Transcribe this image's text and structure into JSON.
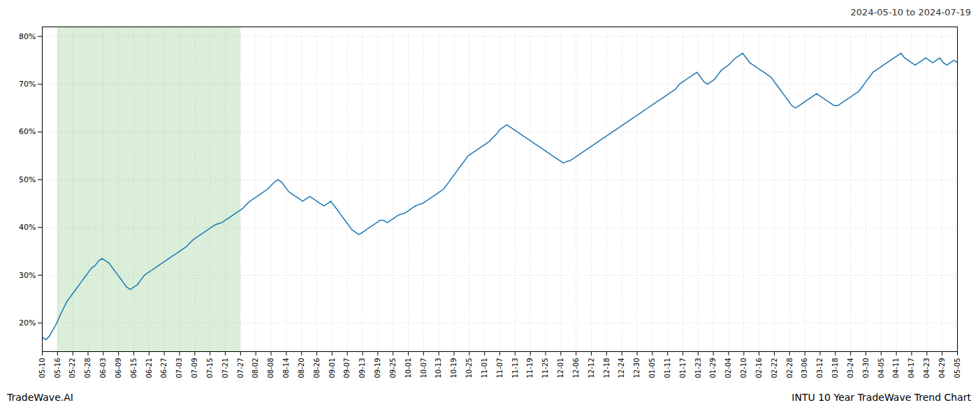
{
  "chart_data": {
    "type": "line",
    "title": "INTU 10 Year TradeWave Trend Chart",
    "subtitle": "2024-05-10 to 2024-07-19",
    "caption": "TradeWave.AI",
    "color": "#1f77b4",
    "grid": true,
    "highlight": {
      "from": 1,
      "to": 13,
      "color": "#daeeda"
    },
    "xlim": [
      0,
      60
    ],
    "xticks": [
      {
        "value": 0,
        "label": "05-10"
      },
      {
        "value": 1,
        "label": "05-16"
      },
      {
        "value": 2,
        "label": "05-22"
      },
      {
        "value": 3,
        "label": "05-28"
      },
      {
        "value": 4,
        "label": "06-03"
      },
      {
        "value": 5,
        "label": "06-09"
      },
      {
        "value": 6,
        "label": "06-15"
      },
      {
        "value": 7,
        "label": "06-21"
      },
      {
        "value": 8,
        "label": "06-27"
      },
      {
        "value": 9,
        "label": "07-03"
      },
      {
        "value": 10,
        "label": "07-09"
      },
      {
        "value": 11,
        "label": "07-15"
      },
      {
        "value": 12,
        "label": "07-21"
      },
      {
        "value": 13,
        "label": "07-27"
      },
      {
        "value": 14,
        "label": "08-02"
      },
      {
        "value": 15,
        "label": "08-08"
      },
      {
        "value": 16,
        "label": "08-14"
      },
      {
        "value": 17,
        "label": "08-20"
      },
      {
        "value": 18,
        "label": "08-26"
      },
      {
        "value": 19,
        "label": "09-01"
      },
      {
        "value": 20,
        "label": "09-07"
      },
      {
        "value": 21,
        "label": "09-13"
      },
      {
        "value": 22,
        "label": "09-19"
      },
      {
        "value": 23,
        "label": "09-25"
      },
      {
        "value": 24,
        "label": "10-01"
      },
      {
        "value": 25,
        "label": "10-07"
      },
      {
        "value": 26,
        "label": "10-13"
      },
      {
        "value": 27,
        "label": "10-19"
      },
      {
        "value": 28,
        "label": "10-25"
      },
      {
        "value": 29,
        "label": "11-01"
      },
      {
        "value": 30,
        "label": "11-07"
      },
      {
        "value": 31,
        "label": "11-13"
      },
      {
        "value": 32,
        "label": "11-19"
      },
      {
        "value": 33,
        "label": "11-25"
      },
      {
        "value": 34,
        "label": "12-01"
      },
      {
        "value": 35,
        "label": "12-06"
      },
      {
        "value": 36,
        "label": "12-12"
      },
      {
        "value": 37,
        "label": "12-18"
      },
      {
        "value": 38,
        "label": "12-24"
      },
      {
        "value": 39,
        "label": "12-30"
      },
      {
        "value": 40,
        "label": "01-05"
      },
      {
        "value": 41,
        "label": "01-11"
      },
      {
        "value": 42,
        "label": "01-17"
      },
      {
        "value": 43,
        "label": "01-23"
      },
      {
        "value": 44,
        "label": "01-29"
      },
      {
        "value": 45,
        "label": "02-04"
      },
      {
        "value": 46,
        "label": "02-10"
      },
      {
        "value": 47,
        "label": "02-16"
      },
      {
        "value": 48,
        "label": "02-22"
      },
      {
        "value": 49,
        "label": "02-28"
      },
      {
        "value": 50,
        "label": "03-06"
      },
      {
        "value": 51,
        "label": "03-12"
      },
      {
        "value": 52,
        "label": "03-18"
      },
      {
        "value": 53,
        "label": "03-24"
      },
      {
        "value": 54,
        "label": "03-30"
      },
      {
        "value": 55,
        "label": "04-05"
      },
      {
        "value": 56,
        "label": "04-11"
      },
      {
        "value": 57,
        "label": "04-17"
      },
      {
        "value": 58,
        "label": "04-23"
      },
      {
        "value": 59,
        "label": "04-29"
      },
      {
        "value": 60,
        "label": "05-05"
      }
    ],
    "ylim": [
      14,
      82
    ],
    "yticks": [
      {
        "value": 20,
        "label": "20%"
      },
      {
        "value": 30,
        "label": "30%"
      },
      {
        "value": 40,
        "label": "40%"
      },
      {
        "value": 50,
        "label": "50%"
      },
      {
        "value": 60,
        "label": "60%"
      },
      {
        "value": 70,
        "label": "70%"
      },
      {
        "value": 80,
        "label": "80%"
      }
    ],
    "values": [
      17.0,
      16.5,
      17.2,
      18.5,
      19.8,
      21.5,
      23.0,
      24.5,
      25.5,
      26.5,
      27.5,
      28.5,
      29.5,
      30.5,
      31.5,
      32.0,
      33.0,
      33.5,
      33.0,
      32.5,
      31.5,
      30.5,
      29.5,
      28.5,
      27.5,
      27.0,
      27.5,
      28.0,
      29.0,
      30.0,
      30.5,
      31.0,
      31.5,
      32.0,
      32.5,
      33.0,
      33.5,
      34.0,
      34.5,
      35.0,
      35.5,
      36.0,
      36.8,
      37.5,
      38.0,
      38.5,
      39.0,
      39.5,
      40.0,
      40.5,
      40.8,
      41.0,
      41.5,
      42.0,
      42.5,
      43.0,
      43.5,
      44.0,
      44.8,
      45.5,
      46.0,
      46.5,
      47.0,
      47.5,
      48.0,
      48.8,
      49.5,
      50.0,
      49.5,
      48.5,
      47.5,
      47.0,
      46.5,
      46.0,
      45.5,
      46.0,
      46.5,
      46.0,
      45.5,
      45.0,
      44.5,
      45.0,
      45.5,
      44.5,
      43.5,
      42.5,
      41.5,
      40.5,
      39.5,
      39.0,
      38.5,
      39.0,
      39.5,
      40.0,
      40.5,
      41.0,
      41.5,
      41.5,
      41.0,
      41.5,
      42.0,
      42.5,
      42.8,
      43.0,
      43.5,
      44.0,
      44.5,
      44.8,
      45.0,
      45.5,
      46.0,
      46.5,
      47.0,
      47.5,
      48.0,
      49.0,
      50.0,
      51.0,
      52.0,
      53.0,
      54.0,
      55.0,
      55.5,
      56.0,
      56.5,
      57.0,
      57.5,
      58.0,
      58.8,
      59.5,
      60.5,
      61.0,
      61.5,
      61.0,
      60.5,
      60.0,
      59.5,
      59.0,
      58.5,
      58.0,
      57.5,
      57.0,
      56.5,
      56.0,
      55.5,
      55.0,
      54.5,
      54.0,
      53.5,
      53.8,
      54.0,
      54.5,
      55.0,
      55.5,
      56.0,
      56.5,
      57.0,
      57.5,
      58.0,
      58.5,
      59.0,
      59.5,
      60.0,
      60.5,
      61.0,
      61.5,
      62.0,
      62.5,
      63.0,
      63.5,
      64.0,
      64.5,
      65.0,
      65.5,
      66.0,
      66.5,
      67.0,
      67.5,
      68.0,
      68.5,
      69.0,
      70.0,
      70.5,
      71.0,
      71.5,
      72.0,
      72.5,
      71.5,
      70.5,
      70.0,
      70.5,
      71.0,
      72.0,
      73.0,
      73.5,
      74.0,
      74.8,
      75.5,
      76.0,
      76.5,
      75.5,
      74.5,
      74.0,
      73.5,
      73.0,
      72.5,
      72.0,
      71.5,
      70.5,
      69.5,
      68.5,
      67.5,
      66.5,
      65.5,
      65.0,
      65.5,
      66.0,
      66.5,
      67.0,
      67.5,
      68.0,
      67.5,
      67.0,
      66.5,
      66.0,
      65.5,
      65.5,
      66.0,
      66.5,
      67.0,
      67.5,
      68.0,
      68.5,
      69.5,
      70.5,
      71.5,
      72.5,
      73.0,
      73.5,
      74.0,
      74.5,
      75.0,
      75.5,
      76.0,
      76.5,
      75.5,
      75.0,
      74.5,
      74.0,
      74.5,
      75.0,
      75.5,
      75.0,
      74.5,
      75.0,
      75.5,
      74.5,
      74.0,
      74.5,
      75.0,
      74.5
    ]
  }
}
